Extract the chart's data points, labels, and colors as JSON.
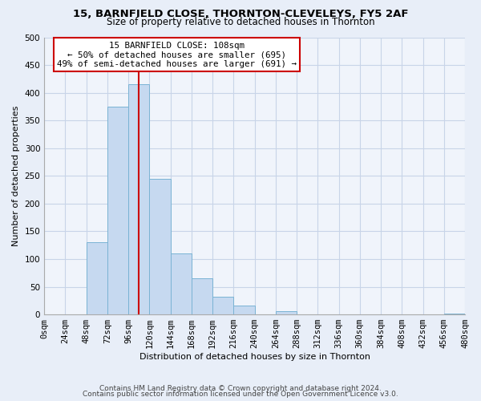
{
  "title": "15, BARNFIELD CLOSE, THORNTON-CLEVELEYS, FY5 2AF",
  "subtitle": "Size of property relative to detached houses in Thornton",
  "xlabel": "Distribution of detached houses by size in Thornton",
  "ylabel": "Number of detached properties",
  "footnote1": "Contains HM Land Registry data © Crown copyright and database right 2024.",
  "footnote2": "Contains public sector information licensed under the Open Government Licence v3.0.",
  "bar_edges": [
    0,
    24,
    48,
    72,
    96,
    120,
    144,
    168,
    192,
    216,
    240,
    264,
    288,
    312,
    336,
    360,
    384,
    408,
    432,
    456,
    480
  ],
  "bar_heights": [
    0,
    0,
    130,
    375,
    415,
    245,
    110,
    65,
    32,
    16,
    0,
    6,
    0,
    0,
    0,
    0,
    0,
    0,
    0,
    2
  ],
  "bar_color": "#c6d9f0",
  "bar_edgecolor": "#7ab3d4",
  "property_size": 108,
  "vline_color": "#cc0000",
  "annotation_line1": "15 BARNFIELD CLOSE: 108sqm",
  "annotation_line2": "← 50% of detached houses are smaller (695)",
  "annotation_line3": "49% of semi-detached houses are larger (691) →",
  "annotation_box_edgecolor": "#cc0000",
  "ylim": [
    0,
    500
  ],
  "yticks": [
    0,
    50,
    100,
    150,
    200,
    250,
    300,
    350,
    400,
    450,
    500
  ],
  "xtick_labels": [
    "0sqm",
    "24sqm",
    "48sqm",
    "72sqm",
    "96sqm",
    "120sqm",
    "144sqm",
    "168sqm",
    "192sqm",
    "216sqm",
    "240sqm",
    "264sqm",
    "288sqm",
    "312sqm",
    "336sqm",
    "360sqm",
    "384sqm",
    "408sqm",
    "432sqm",
    "456sqm",
    "480sqm"
  ],
  "bg_color": "#e8eef8",
  "plot_bg_color": "#f0f4fb",
  "grid_color": "#c8d4e8",
  "title_fontsize": 9.5,
  "subtitle_fontsize": 8.5,
  "axis_fontsize": 8,
  "tick_fontsize": 7.5,
  "footnote_fontsize": 6.5
}
